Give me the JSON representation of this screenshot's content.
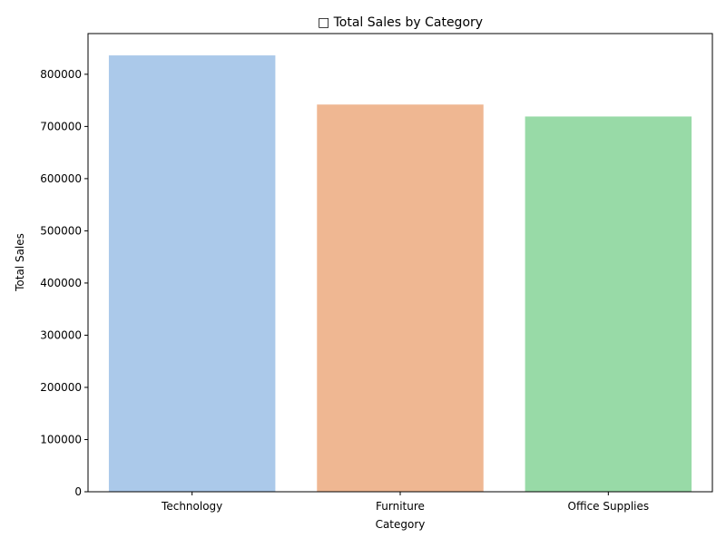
{
  "chart_data": {
    "type": "bar",
    "title": "□ Total Sales by Category",
    "xlabel": "Category",
    "ylabel": "Total Sales",
    "categories": [
      "Technology",
      "Furniture",
      "Office Supplies"
    ],
    "values": [
      836154,
      742000,
      719047
    ],
    "colors": [
      "#abc9ea",
      "#efb792",
      "#98daa7"
    ],
    "ylim": [
      0,
      878000
    ],
    "yticks": [
      0,
      100000,
      200000,
      300000,
      400000,
      500000,
      600000,
      700000,
      800000
    ],
    "grid": false,
    "legend": "none"
  }
}
